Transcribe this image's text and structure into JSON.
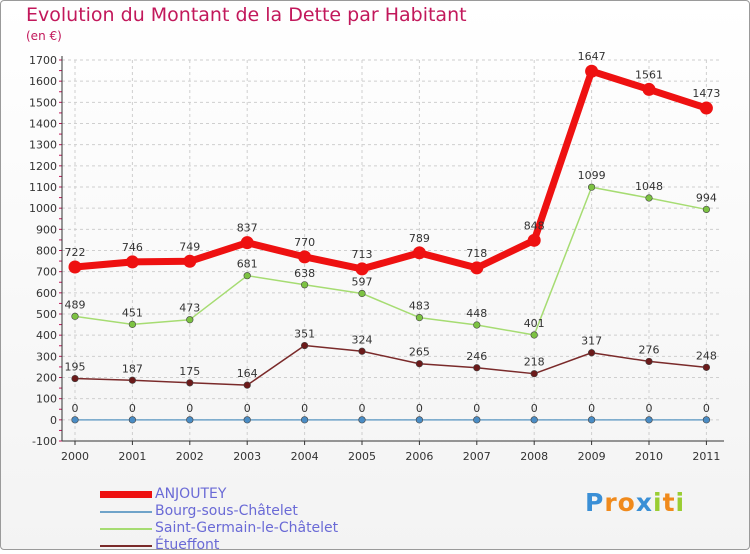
{
  "header": {
    "title": "Evolution du Montant de la Dette par Habitant",
    "subtitle": "(en €)"
  },
  "colors": {
    "title": "#c2185b",
    "axis": "#333333",
    "grid": "#cfcfcf",
    "tick_mark": "#c2185b",
    "legend_text": "#6a6ad6"
  },
  "logo": {
    "text": "Proxiti",
    "letters": [
      "P",
      "r",
      "o",
      "x",
      "i",
      "t",
      "i"
    ],
    "colors": [
      "#3a8fd6",
      "#f08a1c",
      "#f08a1c",
      "#3a8fd6",
      "#9acd32",
      "#f08a1c",
      "#9acd32"
    ]
  },
  "chart_data": {
    "type": "line",
    "title": "Evolution du Montant de la Dette par Habitant",
    "subtitle": "(en €)",
    "x": [
      "2000",
      "2001",
      "2002",
      "2003",
      "2004",
      "2005",
      "2006",
      "2007",
      "2008",
      "2009",
      "2010",
      "2011"
    ],
    "ylim": [
      -100,
      1700
    ],
    "yticks": [
      -100,
      0,
      100,
      200,
      300,
      400,
      500,
      600,
      700,
      800,
      900,
      1000,
      1100,
      1200,
      1300,
      1400,
      1500,
      1600,
      1700
    ],
    "grid": true,
    "legend_position": "bottom-left",
    "series": [
      {
        "name": "ANJOUTEY",
        "color": "#ee1111",
        "marker": "#ee1111",
        "width": 7,
        "values": [
          722,
          746,
          749,
          837,
          770,
          713,
          789,
          718,
          848,
          1647,
          1561,
          1473
        ]
      },
      {
        "name": "Bourg-sous-Châtelet",
        "color": "#6fa3c9",
        "marker": "#4a8cc4",
        "width": 1.5,
        "values": [
          0,
          0,
          0,
          0,
          0,
          0,
          0,
          0,
          0,
          0,
          0,
          0
        ]
      },
      {
        "name": "Saint-Germain-le-Châtelet",
        "color": "#a6dc72",
        "marker": "#7cc242",
        "width": 1.5,
        "values": [
          489,
          451,
          473,
          681,
          638,
          597,
          483,
          448,
          401,
          1099,
          1048,
          994
        ]
      },
      {
        "name": "Étueffont",
        "color": "#7a2a2a",
        "marker": "#6b1a1a",
        "width": 1.5,
        "values": [
          195,
          187,
          175,
          164,
          351,
          324,
          265,
          246,
          218,
          317,
          276,
          248
        ]
      }
    ]
  }
}
